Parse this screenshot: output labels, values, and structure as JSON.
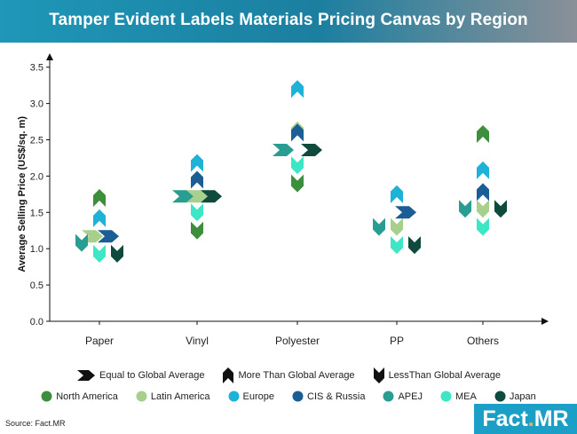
{
  "header": {
    "title": "Tamper Evident Labels Materials Pricing Canvas by Region"
  },
  "colors": {
    "North America": "#3d8f3e",
    "Latin America": "#a8d08d",
    "Europe": "#1fb2d8",
    "CIS & Russia": "#1b5e96",
    "APEJ": "#2a9d93",
    "MEA": "#3de6c4",
    "Japan": "#0f4a3c"
  },
  "chart_data": {
    "type": "scatter",
    "title": "Tamper Evident Labels Materials Pricing Canvas by Region",
    "xlabel": "",
    "ylabel": "Average Selling Price (US$/sq. m)",
    "categories": [
      "Paper",
      "Vinyl",
      "Polyester",
      "PP",
      "Others"
    ],
    "ylim": [
      0,
      3.5
    ],
    "yticks": [
      "0.0",
      "0.5",
      "1.0",
      "1.5",
      "2.0",
      "2.5",
      "3.0",
      "3.5"
    ],
    "grid": false,
    "marker_legend": [
      {
        "label": "Equal to Global Average",
        "shape": "right"
      },
      {
        "label": "More Than Global Average",
        "shape": "up"
      },
      {
        "label": "LessThan Global Average",
        "shape": "down"
      }
    ],
    "series": [
      {
        "name": "North America",
        "points": [
          {
            "x": "Paper",
            "y": 1.7,
            "shape": "up"
          },
          {
            "x": "Vinyl",
            "y": 1.25,
            "shape": "down"
          },
          {
            "x": "Polyester",
            "y": 1.9,
            "shape": "down"
          },
          {
            "x": "PP",
            "y": 1.75,
            "shape": "up"
          },
          {
            "x": "Others",
            "y": 2.58,
            "shape": "up"
          }
        ]
      },
      {
        "name": "Latin America",
        "points": [
          {
            "x": "Paper",
            "y": 1.17,
            "shape": "right"
          },
          {
            "x": "Vinyl",
            "y": 1.72,
            "shape": "right"
          },
          {
            "x": "Polyester",
            "y": 2.63,
            "shape": "up"
          },
          {
            "x": "PP",
            "y": 1.3,
            "shape": "down"
          },
          {
            "x": "Others",
            "y": 1.55,
            "shape": "down"
          }
        ]
      },
      {
        "name": "Europe",
        "points": [
          {
            "x": "Paper",
            "y": 1.42,
            "shape": "up"
          },
          {
            "x": "Vinyl",
            "y": 2.18,
            "shape": "up"
          },
          {
            "x": "Polyester",
            "y": 3.2,
            "shape": "up"
          },
          {
            "x": "PP",
            "y": 1.75,
            "shape": "up"
          },
          {
            "x": "Others",
            "y": 2.08,
            "shape": "up"
          }
        ]
      },
      {
        "name": "CIS & Russia",
        "points": [
          {
            "x": "Paper",
            "y": 1.17,
            "shape": "right"
          },
          {
            "x": "Vinyl",
            "y": 1.95,
            "shape": "up"
          },
          {
            "x": "Polyester",
            "y": 2.6,
            "shape": "up"
          },
          {
            "x": "PP",
            "y": 1.5,
            "shape": "right"
          },
          {
            "x": "Others",
            "y": 1.78,
            "shape": "up"
          }
        ]
      },
      {
        "name": "APEJ",
        "points": [
          {
            "x": "Paper",
            "y": 1.08,
            "shape": "down"
          },
          {
            "x": "Vinyl",
            "y": 1.72,
            "shape": "right"
          },
          {
            "x": "Polyester",
            "y": 2.36,
            "shape": "right"
          },
          {
            "x": "PP",
            "y": 1.3,
            "shape": "down"
          },
          {
            "x": "Others",
            "y": 1.55,
            "shape": "down"
          }
        ]
      },
      {
        "name": "MEA",
        "points": [
          {
            "x": "Paper",
            "y": 0.93,
            "shape": "down"
          },
          {
            "x": "Vinyl",
            "y": 1.5,
            "shape": "down"
          },
          {
            "x": "Polyester",
            "y": 2.15,
            "shape": "down"
          },
          {
            "x": "PP",
            "y": 1.05,
            "shape": "down"
          },
          {
            "x": "Others",
            "y": 1.3,
            "shape": "down"
          }
        ]
      },
      {
        "name": "Japan",
        "points": [
          {
            "x": "Paper",
            "y": 0.93,
            "shape": "down"
          },
          {
            "x": "Vinyl",
            "y": 1.72,
            "shape": "right"
          },
          {
            "x": "Polyester",
            "y": 2.36,
            "shape": "right"
          },
          {
            "x": "PP",
            "y": 1.05,
            "shape": "down"
          },
          {
            "x": "Others",
            "y": 1.55,
            "shape": "down"
          }
        ]
      }
    ]
  },
  "footer": {
    "source": "Source: Fact.MR",
    "logo_main": "Fact",
    "logo_dot": ".",
    "logo_end": "MR"
  }
}
